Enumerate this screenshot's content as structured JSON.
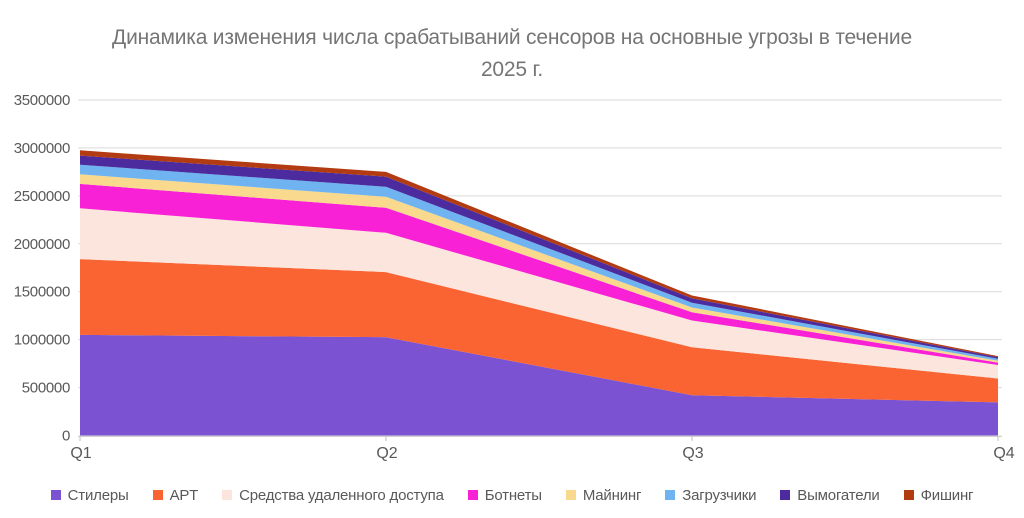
{
  "chart_data": {
    "type": "area",
    "stacked": true,
    "title": "Динамика изменения числа срабатываний сенсоров на основные угрозы в течение 2025 г.",
    "categories": [
      "Q1",
      "Q2",
      "Q3",
      "Q4"
    ],
    "series": [
      {
        "name": "Стилеры",
        "slug": "stealers",
        "color": "#7B52D1",
        "values": [
          1050000,
          1025000,
          420000,
          345000
        ]
      },
      {
        "name": "APT",
        "slug": "apt",
        "color": "#FA6432",
        "values": [
          790000,
          680000,
          500000,
          250000
        ]
      },
      {
        "name": "Средства удаленного доступа",
        "slug": "remote-access-tools",
        "color": "#FCE5DC",
        "values": [
          530000,
          410000,
          280000,
          140000
        ]
      },
      {
        "name": "Ботнеты",
        "slug": "botnets",
        "color": "#F821D6",
        "values": [
          255000,
          260000,
          85000,
          25000
        ]
      },
      {
        "name": "Майнинг",
        "slug": "mining",
        "color": "#F8D98D",
        "values": [
          100000,
          115000,
          50000,
          20000
        ]
      },
      {
        "name": "Загрузчики",
        "slug": "loaders",
        "color": "#6FB3F0",
        "values": [
          100000,
          105000,
          50000,
          20000
        ]
      },
      {
        "name": "Вымогатели",
        "slug": "ransomware",
        "color": "#4B2B9E",
        "values": [
          95000,
          105000,
          45000,
          18000
        ]
      },
      {
        "name": "Фишинг",
        "slug": "phishing",
        "color": "#B23B12",
        "values": [
          55000,
          50000,
          30000,
          10000
        ]
      }
    ],
    "xlabel": "",
    "ylabel": "",
    "ylim": [
      0,
      3500000
    ],
    "ytick_step": 500000,
    "ytick_labels": [
      "0",
      "500000",
      "1000000",
      "1500000",
      "2000000",
      "2500000",
      "3000000",
      "3500000"
    ],
    "grid": true,
    "legend_position": "bottom",
    "gridline_color": "#D9D9D9",
    "axis_color": "#BFBFBF",
    "label_color": "#595959",
    "title_color": "#757575"
  }
}
